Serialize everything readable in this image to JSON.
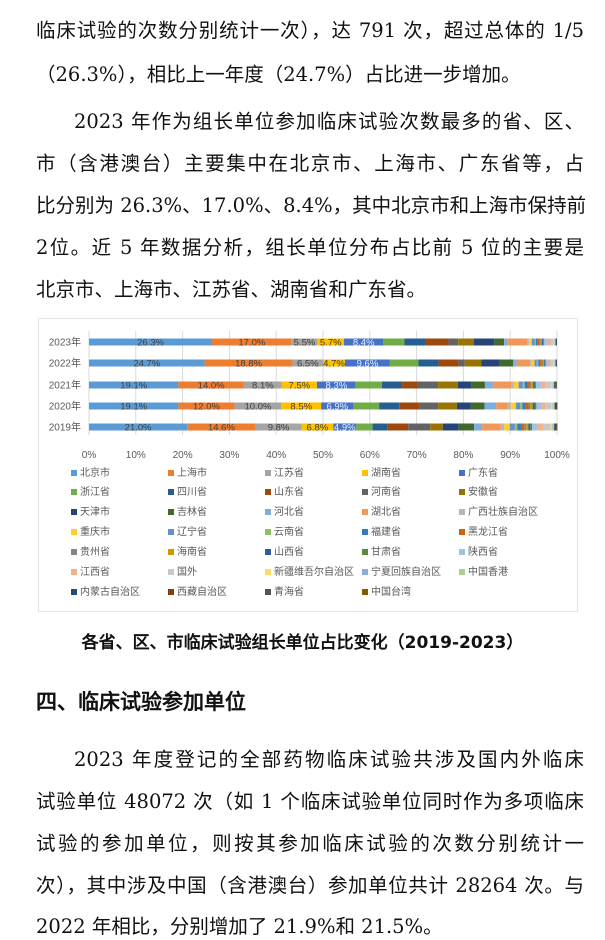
{
  "text": {
    "p1": [
      "临床试验的次数分别统计一次），达 791 次，超过总体的 1/5",
      "（26.3%），相比上一年度（24.7%）占比进一步增加。"
    ],
    "p2": [
      "2023 年作为组长单位参加临床试验次数最多的省、区、",
      "市（含港澳台）主要集中在北京市、上海市、广东省等，占",
      "比分别为 26.3%、17.0%、8.4%，其中北京市和上海市保持前",
      "2位。近 5 年数据分析，组长单位分布占比前 5 位的主要是",
      "北京市、上海市、江苏省、湖南省和广东省。"
    ],
    "caption": "各省、区、市临床试验组长单位占比变化（2019-2023）",
    "heading": "四、临床试验参加单位",
    "p3": [
      "2023 年度登记的全部药物临床试验共涉及国内外临床",
      "试验单位 48072 次（如 1 个临床试验单位同时作为多项临床",
      "试验的参加单位，则按其参加临床试验的次数分别统计一",
      "次），其中涉及中国（含港澳台）参加单位共计 28264 次。与",
      "2022 年相比，分别增加了 21.9%和 21.5%。"
    ]
  },
  "chart_data": {
    "type": "bar",
    "orientation": "horizontal",
    "stacked": "100%",
    "categories": [
      "2023年",
      "2022年",
      "2021年",
      "2020年",
      "2019年"
    ],
    "x_ticks": [
      "0%",
      "10%",
      "20%",
      "30%",
      "40%",
      "50%",
      "60%",
      "70%",
      "80%",
      "90%",
      "100%"
    ],
    "xlim": [
      0,
      100
    ],
    "grid": "vertical",
    "legend": "bottom",
    "labeled_series_count": 5,
    "series": [
      {
        "name": "北京市",
        "color": "#5B9BD5",
        "values": [
          26.3,
          24.7,
          19.1,
          19.1,
          21.0
        ]
      },
      {
        "name": "上海市",
        "color": "#ED7D31",
        "values": [
          17.0,
          18.8,
          14.0,
          12.0,
          14.6
        ]
      },
      {
        "name": "江苏省",
        "color": "#A5A5A5",
        "values": [
          5.5,
          6.5,
          8.1,
          10.0,
          9.8
        ]
      },
      {
        "name": "湖南省",
        "color": "#FFC000",
        "values": [
          5.7,
          4.7,
          7.5,
          8.5,
          6.8
        ]
      },
      {
        "name": "广东省",
        "color": "#4472C4",
        "values": [
          8.4,
          9.6,
          8.3,
          6.9,
          4.9
        ]
      },
      {
        "name": "浙江省",
        "color": "#70AD47",
        "values": [
          4.5,
          6.1,
          5.6,
          5.5,
          3.5
        ]
      },
      {
        "name": "四川省",
        "color": "#255E91",
        "values": [
          4.6,
          4.3,
          4.3,
          4.3,
          3.1
        ]
      },
      {
        "name": "山东省",
        "color": "#9E480E",
        "values": [
          4.8,
          4.3,
          3.3,
          4.3,
          4.5
        ]
      },
      {
        "name": "河南省",
        "color": "#636363",
        "values": [
          2.1,
          1.3,
          4.4,
          4.0,
          4.7
        ]
      },
      {
        "name": "安徽省",
        "color": "#997300",
        "values": [
          3.3,
          3.5,
          4.2,
          4.0,
          2.7
        ]
      },
      {
        "name": "天津市",
        "color": "#264478",
        "values": [
          4.4,
          3.9,
          3.0,
          3.0,
          3.4
        ]
      },
      {
        "name": "吉林省",
        "color": "#43682B",
        "values": [
          2.1,
          2.9,
          2.8,
          2.9,
          3.3
        ]
      },
      {
        "name": "河北省",
        "color": "#7CAFDD",
        "values": [
          0.8,
          0.8,
          1.7,
          2.5,
          1.7
        ]
      },
      {
        "name": "湖北省",
        "color": "#F1975A",
        "values": [
          4.1,
          2.9,
          4.0,
          2.5,
          4.0
        ]
      },
      {
        "name": "广西壮族自治区",
        "color": "#B7B7B7",
        "values": [
          0.4,
          0.3,
          0.5,
          0.6,
          0.7
        ]
      },
      {
        "name": "重庆市",
        "color": "#FFCD33",
        "values": [
          0.6,
          0.6,
          1.0,
          1.1,
          1.2
        ]
      },
      {
        "name": "辽宁省",
        "color": "#698ED0",
        "values": [
          0.6,
          0.5,
          0.9,
          0.9,
          1.1
        ]
      },
      {
        "name": "云南省",
        "color": "#8CC168",
        "values": [
          0.3,
          0.3,
          0.4,
          0.5,
          0.5
        ]
      },
      {
        "name": "福建省",
        "color": "#327DC2",
        "values": [
          0.4,
          0.4,
          0.6,
          0.7,
          0.8
        ]
      },
      {
        "name": "黑龙江省",
        "color": "#D26012",
        "values": [
          0.4,
          0.3,
          0.5,
          0.6,
          0.7
        ]
      },
      {
        "name": "贵州省",
        "color": "#848484",
        "values": [
          0.2,
          0.2,
          0.3,
          0.4,
          0.4
        ]
      },
      {
        "name": "海南省",
        "color": "#CC9A00",
        "values": [
          0.3,
          0.3,
          0.4,
          0.5,
          0.5
        ]
      },
      {
        "name": "山西省",
        "color": "#335AA1",
        "values": [
          0.2,
          0.2,
          0.3,
          0.4,
          0.4
        ]
      },
      {
        "name": "甘肃省",
        "color": "#5A8A39",
        "values": [
          0.2,
          0.2,
          0.3,
          0.4,
          0.4
        ]
      },
      {
        "name": "陕西省",
        "color": "#9DC3E6",
        "values": [
          0.6,
          0.6,
          1.1,
          1.1,
          1.2
        ]
      },
      {
        "name": "江西省",
        "color": "#F4B183",
        "values": [
          0.7,
          0.5,
          1.0,
          0.9,
          1.1
        ]
      },
      {
        "name": "国外",
        "color": "#C9C9C9",
        "values": [
          0.8,
          0.6,
          1.2,
          1.2,
          1.6
        ]
      },
      {
        "name": "新疆维吾尔自治区",
        "color": "#FFD966",
        "values": [
          0.1,
          0.1,
          0.2,
          0.2,
          0.3
        ]
      },
      {
        "name": "宁夏回族自治区",
        "color": "#8FAADC",
        "values": [
          0.1,
          0.1,
          0.1,
          0.1,
          0.1
        ]
      },
      {
        "name": "中国香港",
        "color": "#A9D18E",
        "values": [
          0.2,
          0.2,
          0.3,
          0.4,
          0.4
        ]
      },
      {
        "name": "内蒙古自治区",
        "color": "#1F4E79",
        "values": [
          0.2,
          0.2,
          0.3,
          0.4,
          0.4
        ]
      },
      {
        "name": "西藏自治区",
        "color": "#843C0C",
        "values": [
          0.0,
          0.0,
          0.1,
          0.1,
          0.1
        ]
      },
      {
        "name": "青海省",
        "color": "#525252",
        "values": [
          0.1,
          0.1,
          0.1,
          0.1,
          0.1
        ]
      },
      {
        "name": "中国台湾",
        "color": "#7F6000",
        "values": [
          0.0,
          0.0,
          0.1,
          0.0,
          0.1
        ]
      }
    ]
  }
}
